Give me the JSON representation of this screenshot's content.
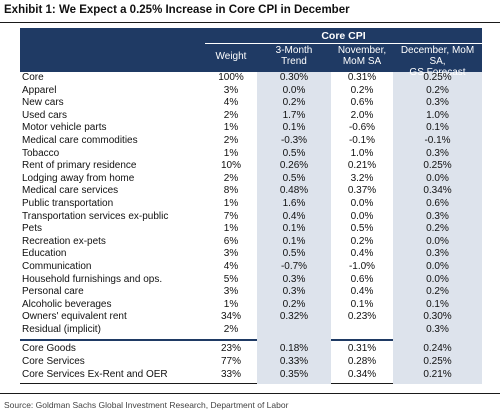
{
  "title": "Exhibit 1: We Expect a 0.25% Increase in Core CPI in December",
  "header": {
    "group": "Core CPI",
    "col_weight": "Weight",
    "col_trend": "3-Month\nTrend",
    "col_nov": "November,\nMoM SA",
    "col_dec": "December, MoM SA,\nGS Forecast"
  },
  "rows": [
    {
      "label": "Core",
      "weight": "100%",
      "trend": "0.30%",
      "nov": "0.31%",
      "dec": "0.25%"
    },
    {
      "label": "Apparel",
      "weight": "3%",
      "trend": "0.0%",
      "nov": "0.2%",
      "dec": "0.2%"
    },
    {
      "label": "New cars",
      "weight": "4%",
      "trend": "0.2%",
      "nov": "0.6%",
      "dec": "0.3%"
    },
    {
      "label": "Used cars",
      "weight": "2%",
      "trend": "1.7%",
      "nov": "2.0%",
      "dec": "1.0%"
    },
    {
      "label": "Motor vehicle parts",
      "weight": "1%",
      "trend": "0.1%",
      "nov": "-0.6%",
      "dec": "0.1%"
    },
    {
      "label": "Medical care commodities",
      "weight": "2%",
      "trend": "-0.3%",
      "nov": "-0.1%",
      "dec": "-0.1%"
    },
    {
      "label": "Tobacco",
      "weight": "1%",
      "trend": "0.5%",
      "nov": "1.0%",
      "dec": "0.3%"
    },
    {
      "label": "Rent of primary residence",
      "weight": "10%",
      "trend": "0.26%",
      "nov": "0.21%",
      "dec": "0.25%"
    },
    {
      "label": "Lodging away from home",
      "weight": "2%",
      "trend": "0.5%",
      "nov": "3.2%",
      "dec": "0.0%"
    },
    {
      "label": "Medical care services",
      "weight": "8%",
      "trend": "0.48%",
      "nov": "0.37%",
      "dec": "0.34%"
    },
    {
      "label": "Public transportation",
      "weight": "1%",
      "trend": "1.6%",
      "nov": "0.0%",
      "dec": "0.6%"
    },
    {
      "label": "Transportation services ex-public",
      "weight": "7%",
      "trend": "0.4%",
      "nov": "0.0%",
      "dec": "0.3%"
    },
    {
      "label": "Pets",
      "weight": "1%",
      "trend": "0.1%",
      "nov": "0.5%",
      "dec": "0.2%"
    },
    {
      "label": "Recreation ex-pets",
      "weight": "6%",
      "trend": "0.1%",
      "nov": "0.2%",
      "dec": "0.0%"
    },
    {
      "label": "Education",
      "weight": "3%",
      "trend": "0.5%",
      "nov": "0.4%",
      "dec": "0.3%"
    },
    {
      "label": "Communication",
      "weight": "4%",
      "trend": "-0.7%",
      "nov": "-1.0%",
      "dec": "0.0%"
    },
    {
      "label": "Household furnishings and ops.",
      "weight": "5%",
      "trend": "0.3%",
      "nov": "0.6%",
      "dec": "0.0%"
    },
    {
      "label": "Personal care",
      "weight": "3%",
      "trend": "0.3%",
      "nov": "0.4%",
      "dec": "0.2%"
    },
    {
      "label": "Alcoholic beverages",
      "weight": "1%",
      "trend": "0.2%",
      "nov": "0.1%",
      "dec": "0.1%"
    },
    {
      "label": "Owners' equivalent rent",
      "weight": "34%",
      "trend": "0.32%",
      "nov": "0.23%",
      "dec": "0.30%"
    },
    {
      "label": "Residual (implicit)",
      "weight": "2%",
      "trend": "",
      "nov": "",
      "dec": "0.3%"
    }
  ],
  "summary_rows": [
    {
      "label": "Core Goods",
      "weight": "23%",
      "trend": "0.18%",
      "nov": "0.31%",
      "dec": "0.24%"
    },
    {
      "label": "Core Services",
      "weight": "77%",
      "trend": "0.33%",
      "nov": "0.28%",
      "dec": "0.25%"
    },
    {
      "label": "Core Services Ex-Rent and OER",
      "weight": "33%",
      "trend": "0.35%",
      "nov": "0.34%",
      "dec": "0.21%"
    }
  ],
  "source": "Source: Goldman Sachs Global Investment Research, Department of Labor",
  "colors": {
    "header_bg": "#1f3a64",
    "shade": "#dde3ec"
  }
}
